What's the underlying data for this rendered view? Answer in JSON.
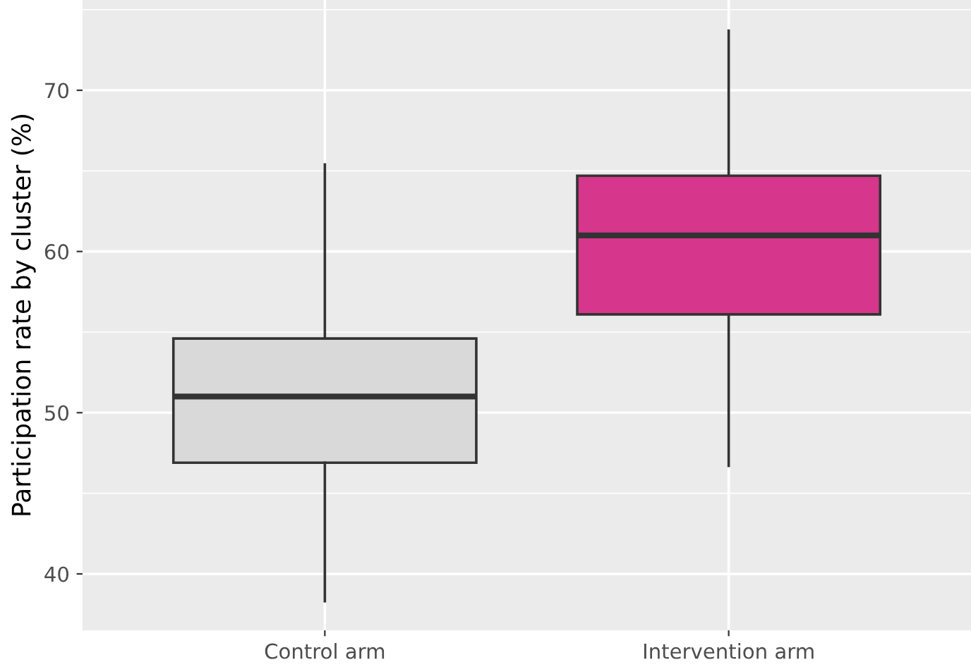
{
  "chart_data": {
    "type": "box",
    "ylabel": "Participation rate by cluster (%)",
    "categories": [
      "Control arm",
      "Intervention arm"
    ],
    "boxes": [
      {
        "low": 38.3,
        "q1": 46.9,
        "median": 51.0,
        "q3": 54.6,
        "high": 65.4
      },
      {
        "low": 46.7,
        "q1": 56.1,
        "median": 61.0,
        "q3": 64.7,
        "high": 73.7
      }
    ],
    "colors": [
      "#d9d9d9",
      "#d6368b"
    ],
    "ylim": [
      36.5,
      75.6
    ],
    "yticks": [
      40,
      50,
      60,
      70
    ],
    "grid": true
  }
}
